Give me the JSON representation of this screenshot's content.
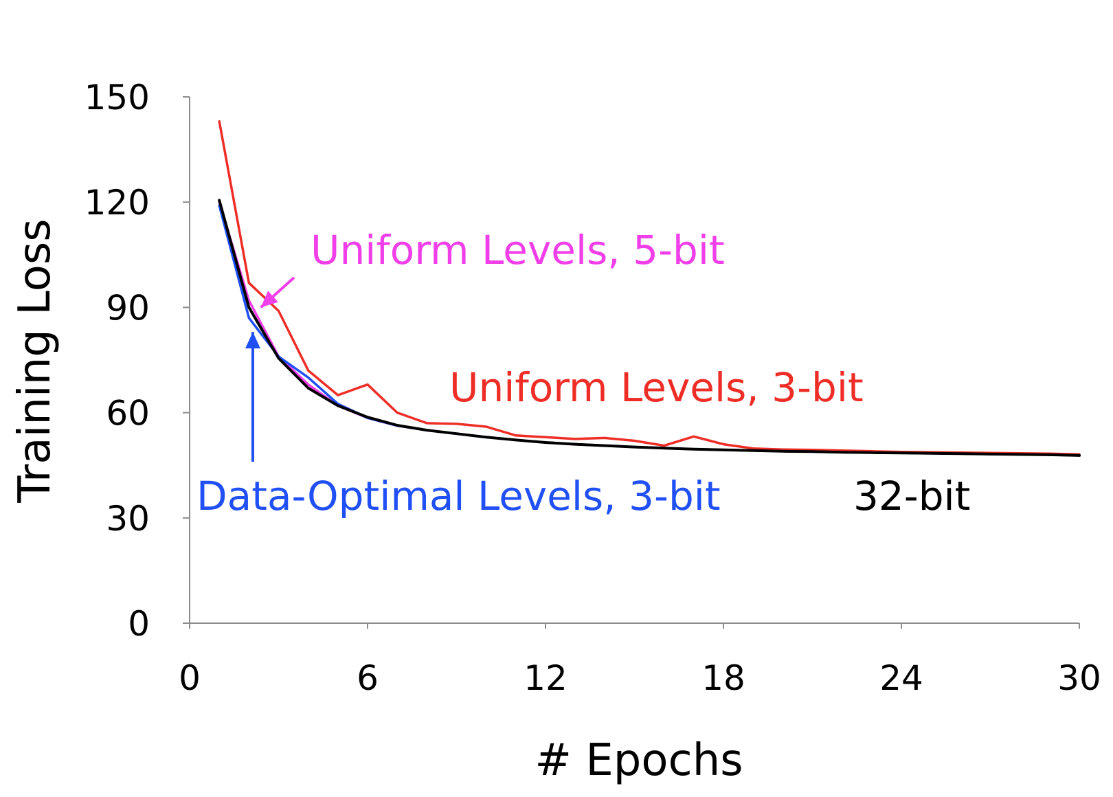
{
  "chart_data": {
    "type": "line",
    "title": "",
    "xlabel": "# Epochs",
    "ylabel": "Training Loss",
    "xlim": [
      0,
      30
    ],
    "ylim": [
      0,
      150
    ],
    "x_ticks": [
      0,
      6,
      12,
      18,
      24,
      30
    ],
    "y_ticks": [
      0,
      30,
      60,
      90,
      120,
      150
    ],
    "grid": false,
    "legend": "none",
    "series": [
      {
        "name": "Uniform Levels, 3-bit",
        "color": "#ee2d26",
        "x": [
          1,
          2,
          3,
          4,
          5,
          6,
          7,
          8,
          9,
          10,
          11,
          12,
          13,
          14,
          15,
          16,
          17,
          18,
          19,
          20,
          21,
          22,
          23,
          24,
          25,
          26,
          27,
          28,
          29,
          30
        ],
        "y": [
          143,
          97,
          89,
          72,
          65,
          68,
          60,
          57,
          56.8,
          56,
          53.5,
          53,
          52.5,
          52.8,
          52,
          50.6,
          53.2,
          51,
          49.8,
          49.5,
          49.4,
          49.2,
          49,
          48.8,
          48.7,
          48.6,
          48.5,
          48.4,
          48.3,
          48.1
        ]
      },
      {
        "name": "Uniform Levels, 5-bit",
        "color": "#f03ee8",
        "x": [
          1,
          2,
          3,
          4,
          5,
          6,
          7,
          8,
          9,
          10,
          11,
          12,
          13,
          14,
          15,
          16,
          17,
          18,
          19,
          20,
          21,
          22,
          23,
          24,
          25,
          26,
          27,
          28,
          29,
          30
        ],
        "y": [
          120,
          92,
          76,
          68,
          62,
          58.5,
          56.3,
          55,
          54,
          53,
          52.2,
          51.5,
          51,
          50.6,
          50.2,
          49.9,
          49.6,
          49.4,
          49.2,
          49,
          48.9,
          48.7,
          48.6,
          48.5,
          48.4,
          48.3,
          48.2,
          48.1,
          48,
          47.8
        ]
      },
      {
        "name": "Data-Optimal Levels, 3-bit",
        "color": "#1f4ff5",
        "x": [
          1,
          2,
          3,
          4,
          5,
          6,
          7,
          8,
          9,
          10,
          11,
          12,
          13,
          14,
          15,
          16,
          17,
          18,
          19,
          20,
          21,
          22,
          23,
          24,
          25,
          26,
          27,
          28,
          29,
          30
        ],
        "y": [
          119,
          87,
          76,
          70,
          62.5,
          58.5,
          56.3,
          55,
          54,
          53,
          52.2,
          51.5,
          51,
          50.6,
          50.2,
          49.9,
          49.6,
          49.4,
          49.2,
          49,
          48.9,
          48.7,
          48.6,
          48.5,
          48.4,
          48.3,
          48.2,
          48.1,
          48,
          47.8
        ]
      },
      {
        "name": "32-bit",
        "color": "#000000",
        "x": [
          1,
          2,
          3,
          4,
          5,
          6,
          7,
          8,
          9,
          10,
          11,
          12,
          13,
          14,
          15,
          16,
          17,
          18,
          19,
          20,
          21,
          22,
          23,
          24,
          25,
          26,
          27,
          28,
          29,
          30
        ],
        "y": [
          120.5,
          90,
          75.5,
          67,
          62,
          58.7,
          56.4,
          55,
          54,
          53,
          52.2,
          51.5,
          51,
          50.6,
          50.2,
          49.9,
          49.6,
          49.4,
          49.2,
          49,
          48.9,
          48.7,
          48.6,
          48.5,
          48.4,
          48.3,
          48.2,
          48.1,
          48,
          47.8
        ]
      }
    ],
    "annotations": [
      {
        "text": "Uniform Levels, 5-bit",
        "color": "#f03ee8",
        "arrow_to": {
          "x": 2.4,
          "y": 90
        }
      },
      {
        "text": "Uniform Levels, 3-bit",
        "color": "#ee2d26"
      },
      {
        "text": "Data-Optimal Levels, 3-bit",
        "color": "#1f4ff5",
        "arrow_to": {
          "x": 2.1,
          "y": 83
        }
      },
      {
        "text": "32-bit",
        "color": "#000000"
      }
    ]
  }
}
